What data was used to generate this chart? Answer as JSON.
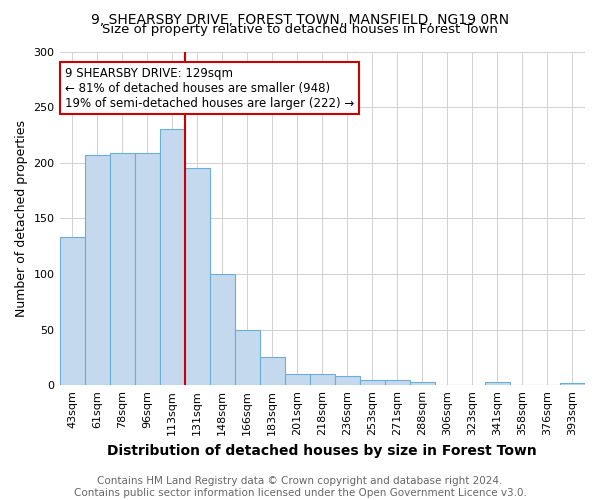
{
  "title": "9, SHEARSBY DRIVE, FOREST TOWN, MANSFIELD, NG19 0RN",
  "subtitle": "Size of property relative to detached houses in Forest Town",
  "xlabel": "Distribution of detached houses by size in Forest Town",
  "ylabel": "Number of detached properties",
  "footer1": "Contains HM Land Registry data © Crown copyright and database right 2024.",
  "footer2": "Contains public sector information licensed under the Open Government Licence v3.0.",
  "annotation_line1": "9 SHEARSBY DRIVE: 129sqm",
  "annotation_line2": "← 81% of detached houses are smaller (948)",
  "annotation_line3": "19% of semi-detached houses are larger (222) →",
  "bar_labels": [
    "43sqm",
    "61sqm",
    "78sqm",
    "96sqm",
    "113sqm",
    "131sqm",
    "148sqm",
    "166sqm",
    "183sqm",
    "201sqm",
    "218sqm",
    "236sqm",
    "253sqm",
    "271sqm",
    "288sqm",
    "306sqm",
    "323sqm",
    "341sqm",
    "358sqm",
    "376sqm",
    "393sqm"
  ],
  "bar_values": [
    133,
    207,
    209,
    209,
    230,
    195,
    100,
    50,
    25,
    10,
    10,
    8,
    5,
    5,
    3,
    0,
    0,
    3,
    0,
    0,
    2
  ],
  "bar_color": "#c5d9ee",
  "bar_edge_color": "#6aaed6",
  "vline_bar_index": 5,
  "vline_color": "#cc0000",
  "ylim": [
    0,
    300
  ],
  "yticks": [
    0,
    50,
    100,
    150,
    200,
    250,
    300
  ],
  "grid_color": "#d0d0d0",
  "background_color": "#ffffff",
  "annotation_box_color": "#ffffff",
  "annotation_box_edge": "#cc0000",
  "title_fontsize": 10,
  "subtitle_fontsize": 9.5,
  "xlabel_fontsize": 10,
  "ylabel_fontsize": 9,
  "tick_fontsize": 8,
  "footer_fontsize": 7.5,
  "annotation_fontsize": 8.5
}
